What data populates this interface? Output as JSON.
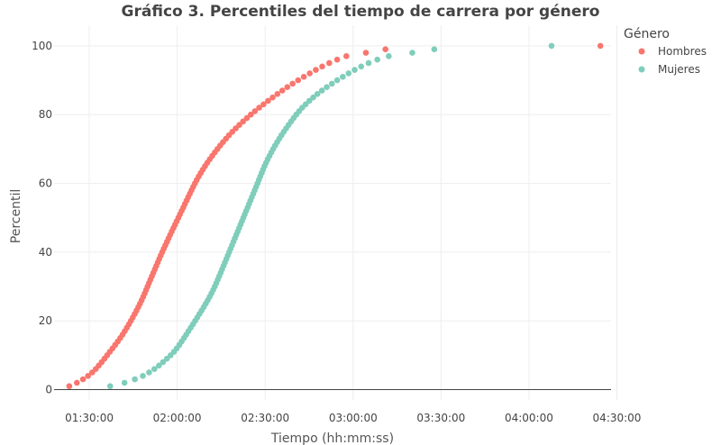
{
  "chart_data": {
    "type": "scatter",
    "title": "Gráfico 3. Percentiles del tiempo de carrera por género",
    "xlabel": "Tiempo (hh:mm:ss)",
    "ylabel": "Percentil",
    "x_unit": "seconds",
    "xlim": [
      4680,
      16080
    ],
    "ylim": [
      -3,
      106
    ],
    "x_ticks": [
      5400,
      7200,
      9000,
      10800,
      12600,
      14400,
      16200
    ],
    "x_tick_labels": [
      "01:30:00",
      "02:00:00",
      "02:30:00",
      "03:00:00",
      "03:30:00",
      "04:00:00",
      "04:30:00"
    ],
    "y_ticks": [
      0,
      20,
      40,
      60,
      80,
      100
    ],
    "y_tick_labels": [
      "0",
      "20",
      "40",
      "60",
      "80",
      "100"
    ],
    "grid": true,
    "legend": {
      "title": "Género",
      "position": "top-right"
    },
    "series": [
      {
        "name": "Hombres",
        "color": "#f8766d",
        "percentiles": [
          1,
          2,
          3,
          4,
          5,
          6,
          7,
          8,
          9,
          10,
          11,
          12,
          13,
          14,
          15,
          16,
          17,
          18,
          19,
          20,
          21,
          22,
          23,
          24,
          25,
          26,
          27,
          28,
          29,
          30,
          31,
          32,
          33,
          34,
          35,
          36,
          37,
          38,
          39,
          40,
          41,
          42,
          43,
          44,
          45,
          46,
          47,
          48,
          49,
          50,
          51,
          52,
          53,
          54,
          55,
          56,
          57,
          58,
          59,
          60,
          61,
          62,
          63,
          64,
          65,
          66,
          67,
          68,
          69,
          70,
          71,
          72,
          73,
          74,
          75,
          76,
          77,
          78,
          79,
          80,
          81,
          82,
          83,
          84,
          85,
          86,
          87,
          88,
          89,
          90,
          91,
          92,
          93,
          94,
          95,
          96,
          97,
          98,
          99,
          100
        ],
        "times_sec": [
          4991,
          5147,
          5272,
          5375,
          5461,
          5533,
          5595,
          5654,
          5711,
          5766,
          5821,
          5876,
          5930,
          5983,
          6033,
          6081,
          6126,
          6169,
          6211,
          6251,
          6291,
          6330,
          6367,
          6403,
          6438,
          6472,
          6504,
          6535,
          6564,
          6593,
          6622,
          6652,
          6682,
          6712,
          6742,
          6772,
          6802,
          6832,
          6862,
          6893,
          6925,
          6958,
          6990,
          7023,
          7055,
          7088,
          7122,
          7156,
          7190,
          7224,
          7258,
          7291,
          7325,
          7358,
          7392,
          7425,
          7459,
          7493,
          7527,
          7563,
          7600,
          7640,
          7681,
          7724,
          7769,
          7816,
          7866,
          7917,
          7970,
          8024,
          8080,
          8138,
          8198,
          8261,
          8328,
          8398,
          8472,
          8548,
          8626,
          8707,
          8791,
          8878,
          8968,
          9060,
          9154,
          9251,
          9351,
          9454,
          9562,
          9675,
          9792,
          9913,
          10038,
          10168,
          10312,
          10474,
          10662,
          11062,
          11462,
          15862
        ]
      },
      {
        "name": "Mujeres",
        "color": "#7fcdbb",
        "percentiles": [
          1,
          2,
          3,
          4,
          5,
          6,
          7,
          8,
          9,
          10,
          11,
          12,
          13,
          14,
          15,
          16,
          17,
          18,
          19,
          20,
          21,
          22,
          23,
          24,
          25,
          26,
          27,
          28,
          29,
          30,
          31,
          32,
          33,
          34,
          35,
          36,
          37,
          38,
          39,
          40,
          41,
          42,
          43,
          44,
          45,
          46,
          47,
          48,
          49,
          50,
          51,
          52,
          53,
          54,
          55,
          56,
          57,
          58,
          59,
          60,
          61,
          62,
          63,
          64,
          65,
          66,
          67,
          68,
          69,
          70,
          71,
          72,
          73,
          74,
          75,
          76,
          77,
          78,
          79,
          80,
          81,
          82,
          83,
          84,
          85,
          86,
          87,
          88,
          89,
          90,
          91,
          92,
          93,
          94,
          95,
          96,
          97,
          98,
          99,
          100
        ],
        "times_sec": [
          5828,
          6122,
          6333,
          6497,
          6625,
          6733,
          6826,
          6909,
          6988,
          7065,
          7133,
          7191,
          7243,
          7291,
          7338,
          7384,
          7430,
          7476,
          7522,
          7567,
          7611,
          7655,
          7699,
          7742,
          7784,
          7825,
          7864,
          7901,
          7936,
          7969,
          8000,
          8030,
          8060,
          8090,
          8119,
          8148,
          8177,
          8206,
          8235,
          8264,
          8293,
          8322,
          8351,
          8380,
          8409,
          8438,
          8467,
          8496,
          8525,
          8554,
          8583,
          8612,
          8641,
          8670,
          8699,
          8728,
          8757,
          8786,
          8815,
          8844,
          8872,
          8900,
          8928,
          8957,
          8987,
          9019,
          9053,
          9089,
          9126,
          9164,
          9204,
          9246,
          9289,
          9334,
          9381,
          9430,
          9480,
          9531,
          9583,
          9637,
          9695,
          9759,
          9829,
          9904,
          9984,
          10070,
          10162,
          10261,
          10366,
          10475,
          10589,
          10708,
          10832,
          10966,
          11118,
          11296,
          11530,
          12012,
          12462,
          14862
        ]
      }
    ]
  }
}
